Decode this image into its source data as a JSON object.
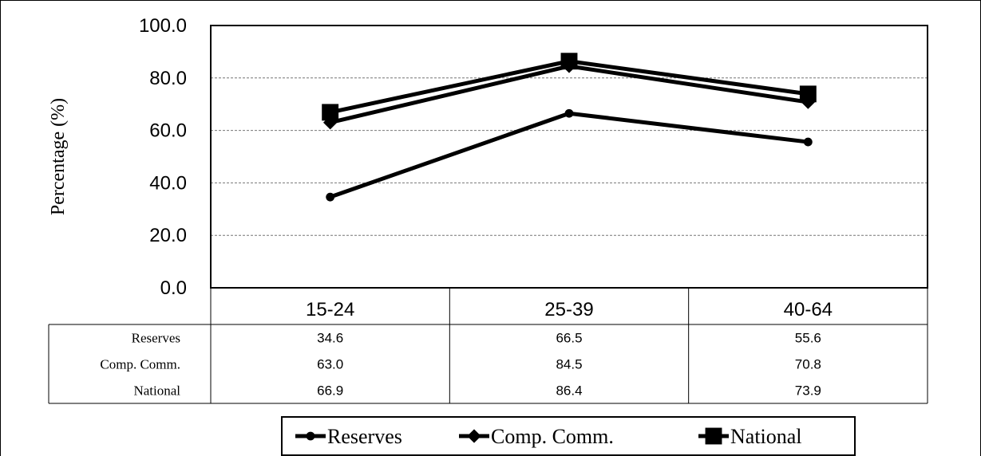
{
  "chart_data": {
    "type": "line",
    "title": "",
    "xlabel": "",
    "ylabel": "Percentage (%)",
    "ylim": [
      0,
      100
    ],
    "yticks": [
      "0.0",
      "20.0",
      "40.0",
      "60.0",
      "80.0",
      "100.0"
    ],
    "grid": true,
    "categories": [
      "15-24",
      "25-39",
      "40-64"
    ],
    "series": [
      {
        "name": "Reserves",
        "marker": "circle",
        "values": [
          34.6,
          66.5,
          55.6
        ],
        "labels": [
          "34.6",
          "66.5",
          "55.6"
        ]
      },
      {
        "name": "Comp. Comm.",
        "marker": "diamond",
        "values": [
          63.0,
          84.5,
          70.8
        ],
        "labels": [
          "63.0",
          "84.5",
          "70.8"
        ]
      },
      {
        "name": "National",
        "marker": "square",
        "values": [
          66.9,
          86.4,
          73.9
        ],
        "labels": [
          "66.9",
          "86.4",
          "73.9"
        ]
      }
    ],
    "legend_position": "bottom",
    "data_table": true,
    "line_color": "#000000"
  }
}
